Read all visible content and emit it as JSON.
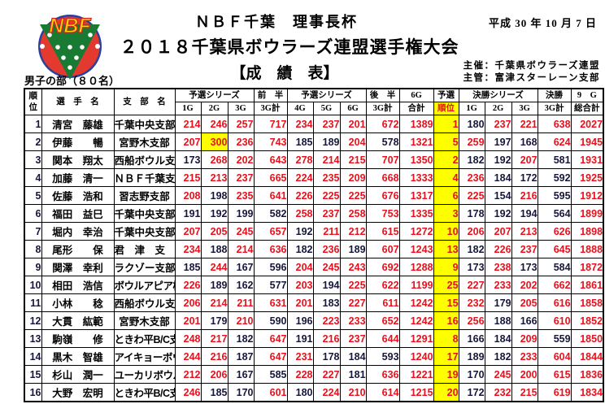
{
  "page": {
    "title": "ＮＢＦ千葉　理事長杯",
    "date": "平成 30 年 10 月 7 日",
    "subtitle": "２０１８千葉県ボウラーズ連盟選手権大会",
    "sheet_label": "【成　績　表】",
    "division": "男子の部（８０名）",
    "organizer_host": "主催：千葉県ボウラーズ連盟",
    "organizer_manager": "主管：富津スターレーン支部",
    "logo_text": "NBF"
  },
  "colors": {
    "score_red": "#e8101c",
    "score_dark": "#16163a",
    "highlight_yellow": "#ffff00",
    "border_black": "#000000",
    "logo_ring": "#2b3f9e",
    "logo_circle": "#e23a2e",
    "logo_triangle": "#187a33",
    "logo_text": "#ffd400",
    "logo_text_outline": "#d42323",
    "logo_dots": "#ffffff"
  },
  "rules": {
    "game_red_min": 200,
    "series_red_min": 600,
    "perfect_game": 300
  },
  "table": {
    "columns": {
      "rank": "順位",
      "player": "選　手　名",
      "branch": "支　部　名",
      "prelim_series": "予選シリーズ",
      "first_half": "前　半",
      "second_half": "後　半",
      "six_g": "6G",
      "total": "合計",
      "prelim": "予選",
      "prelim_rank": "順位",
      "final_series": "決勝シリーズ",
      "final": "決勝",
      "nine_g": "9　G",
      "grand_total": "総合計",
      "g1": "1G",
      "g2": "2G",
      "g3": "3G",
      "t3": "3G計",
      "g4": "4G",
      "g5": "5G",
      "g6": "6G"
    },
    "rows": [
      [
        1,
        "清宮　藤雄",
        "千葉中央支部",
        214,
        246,
        257,
        717,
        234,
        237,
        201,
        672,
        1389,
        1,
        180,
        237,
        221,
        638,
        2027
      ],
      [
        2,
        "伊藤　　暢",
        "宮野木支部",
        207,
        300,
        236,
        743,
        185,
        189,
        204,
        578,
        1321,
        5,
        259,
        197,
        168,
        624,
        1945
      ],
      [
        3,
        "関本　翔太",
        "西船ボウル支部",
        173,
        268,
        202,
        643,
        278,
        214,
        215,
        707,
        1350,
        2,
        182,
        192,
        207,
        581,
        1931
      ],
      [
        4,
        "加藤　清一",
        "ＮＢＦ千葉支部",
        215,
        213,
        237,
        665,
        224,
        235,
        209,
        668,
        1333,
        4,
        236,
        184,
        172,
        592,
        1925
      ],
      [
        5,
        "佐藤　浩和",
        "習志野支部",
        208,
        198,
        235,
        641,
        226,
        225,
        225,
        676,
        1317,
        6,
        225,
        154,
        216,
        595,
        1912
      ],
      [
        6,
        "福田　益巳",
        "千葉中央支部",
        191,
        192,
        199,
        582,
        258,
        237,
        258,
        753,
        1335,
        3,
        178,
        192,
        194,
        564,
        1899
      ],
      [
        7,
        "堀内　幸治",
        "千葉中央支部",
        207,
        205,
        245,
        657,
        192,
        211,
        212,
        615,
        1272,
        10,
        206,
        207,
        213,
        626,
        1898
      ],
      [
        8,
        "尾形　　保",
        "君　津　支　部",
        234,
        188,
        214,
        636,
        182,
        236,
        189,
        607,
        1243,
        13,
        182,
        226,
        237,
        645,
        1888
      ],
      [
        9,
        "関澤　幸利",
        "ラクゾー支部",
        185,
        244,
        167,
        596,
        204,
        245,
        243,
        692,
        1288,
        9,
        173,
        238,
        173,
        584,
        1872
      ],
      [
        10,
        "相田　浩信",
        "ボウルアピア柏支部",
        226,
        189,
        162,
        577,
        203,
        194,
        225,
        622,
        1199,
        25,
        227,
        233,
        202,
        662,
        1861
      ],
      [
        11,
        "小林　　稔",
        "西船ボウル支部",
        206,
        214,
        211,
        631,
        201,
        183,
        227,
        611,
        1242,
        15,
        232,
        179,
        205,
        616,
        1858
      ],
      [
        12,
        "大貫　紘範",
        "宮野木支部",
        201,
        179,
        210,
        590,
        196,
        223,
        233,
        652,
        1242,
        16,
        256,
        188,
        166,
        610,
        1852
      ],
      [
        13,
        "駒嶺　　修",
        "ときわ平B/C支部",
        248,
        217,
        182,
        647,
        191,
        216,
        237,
        644,
        1291,
        8,
        166,
        184,
        209,
        559,
        1850
      ],
      [
        14,
        "黒木　智雄",
        "アイキョーボウル支部",
        244,
        216,
        187,
        647,
        231,
        178,
        184,
        593,
        1240,
        17,
        189,
        182,
        233,
        604,
        1844
      ],
      [
        15,
        "杉山　潤一",
        "ユーカリボウル支部",
        212,
        206,
        167,
        585,
        228,
        227,
        181,
        636,
        1221,
        19,
        170,
        245,
        200,
        615,
        1836
      ],
      [
        16,
        "大野　宏明",
        "ときわ平B/C支部",
        246,
        185,
        170,
        601,
        180,
        224,
        210,
        614,
        1215,
        20,
        172,
        232,
        215,
        619,
        1834
      ]
    ]
  }
}
